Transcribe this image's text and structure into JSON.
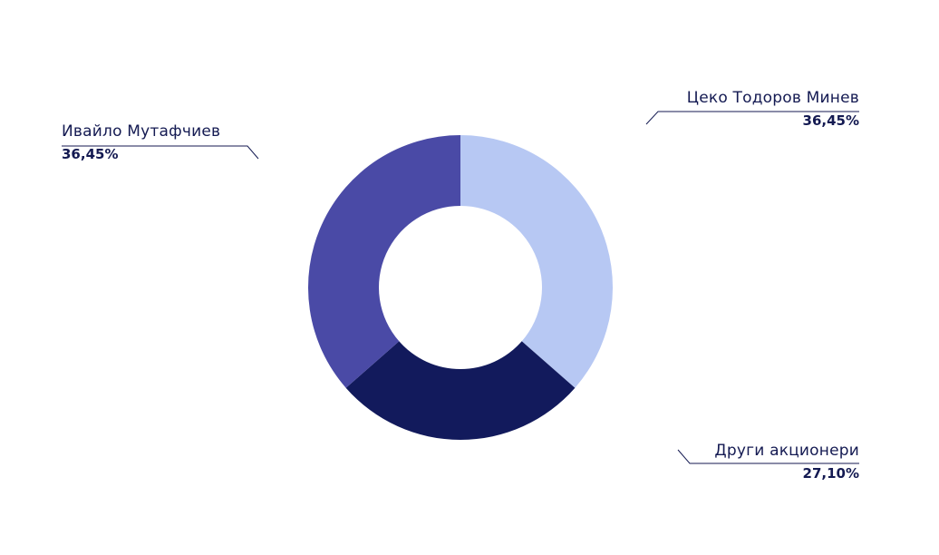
{
  "chart_data": {
    "type": "pie",
    "donut": true,
    "title": "",
    "slices": [
      {
        "label": "Цеко Тодоров Минев",
        "value": 36.45,
        "value_text": "36,45%",
        "color": "#b7c8f3"
      },
      {
        "label": "Други акционери",
        "value": 27.1,
        "value_text": "27,10%",
        "color": "#121a5c"
      },
      {
        "label": "Ивайло Мутафчиев",
        "value": 36.45,
        "value_text": "36,45%",
        "color": "#4a4aa6"
      }
    ]
  }
}
